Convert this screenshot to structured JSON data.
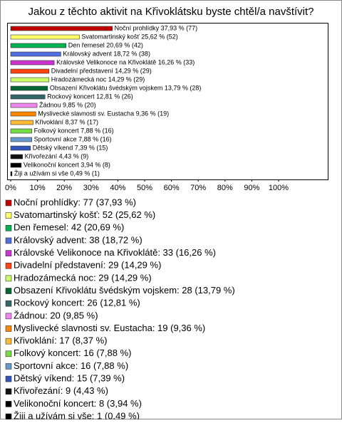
{
  "chart_data": {
    "type": "bar",
    "orientation": "horizontal",
    "title": "Jakou z těchto aktivit na Křivoklátsku byste chtěl/a navštívit?",
    "categories": [
      "Noční prohlídky",
      "Svatomartinský košť",
      "Den řemesel",
      "Královský advent",
      "Královské Velikonoce na Křivoklátě",
      "Divadelní představení",
      "Hradozámecká noc",
      "Obsazení Křivoklátu švédským vojskem",
      "Rockový koncert",
      "Žádnou",
      "Myslivecké slavnosti sv. Eustacha",
      "Křivoklání",
      "Folkový koncert",
      "Sportovní akce",
      "Dětský víkend",
      "Křivořezání",
      "Velikonoční koncert",
      "Žiji a užívám si vše"
    ],
    "values": [
      37.93,
      25.62,
      20.69,
      18.72,
      16.26,
      14.29,
      14.29,
      13.79,
      12.81,
      9.85,
      9.36,
      8.37,
      7.88,
      7.88,
      7.39,
      4.43,
      3.94,
      0.49
    ],
    "value_labels": [
      "Noční prohlídky 37,93 % (77)",
      "Svatomartinský košť 25,62 % (52)",
      "Den řemesel 20,69 % (42)",
      "Královský advent 18,72 % (38)",
      "Královské Velikonoce na Křivoklátě 16,26 % (33)",
      "Divadelní představení 14,29 % (29)",
      "Hradozámecká noc 14,29 % (29)",
      "Obsazení Křivoklátu švédským vojskem 13,79 % (28)",
      "Rockový koncert 12,81 % (26)",
      "Žádnou 9,85 % (20)",
      "Myslivecké slavnosti sv. Eustacha 9,36 % (19)",
      "Křivoklání 8,37 % (17)",
      "Folkový koncert 7,88 % (16)",
      "Sportovní akce 7,88 % (16)",
      "Dětský víkend 7,39 % (15)",
      "Křivořezání 4,43 % (9)",
      "Velikonoční koncert 3,94 % (8)",
      "Žiji a užívám si vše 0,49 % (1)"
    ],
    "legend_labels": [
      "Noční prohlídky: 77 (37,93 %)",
      "Svatomartinský košť: 52 (25,62 %)",
      "Den řemesel: 42 (20,69 %)",
      "Královský advent: 38 (18,72 %)",
      "Královské Velikonoce na Křivoklátě: 33 (16,26 %)",
      "Divadelní představení: 29 (14,29 %)",
      "Hradozámecká noc: 29 (14,29 %)",
      "Obsazení Křivoklátu švédským vojskem: 28 (13,79 %)",
      "Rockový koncert: 26 (12,81 %)",
      "Žádnou: 20 (9,85 %)",
      "Myslivecké slavnosti sv. Eustacha: 19 (9,36 %)",
      "Křivoklání: 17 (8,37 %)",
      "Folkový koncert: 16 (7,88 %)",
      "Sportovní akce: 16 (7,88 %)",
      "Dětský víkend: 15 (7,39 %)",
      "Křivořezání: 9 (4,43 %)",
      "Velikonoční koncert: 8 (3,94 %)",
      "Žiji a užívám si vše: 1 (0,49 %)"
    ],
    "colors": [
      "#c00000",
      "#ffff66",
      "#00b050",
      "#4f6fdf",
      "#cc33cc",
      "#ff4411",
      "#ccff66",
      "#006633",
      "#336666",
      "#ee88ee",
      "#ff8800",
      "#ffbb33",
      "#77dd44",
      "#6699cc",
      "#3355bb",
      "#111111",
      "#000000",
      "#000000"
    ],
    "xlim": [
      0,
      100
    ],
    "xticks": [
      {
        "value": 0,
        "label": "0%"
      },
      {
        "value": 10,
        "label": "10%"
      },
      {
        "value": 20,
        "label": "20%"
      },
      {
        "value": 30,
        "label": "30%"
      },
      {
        "value": 40,
        "label": "40%"
      },
      {
        "value": 50,
        "label": "50%"
      },
      {
        "value": 60,
        "label": "60%"
      },
      {
        "value": 70,
        "label": "70%"
      },
      {
        "value": 80,
        "label": "80%"
      },
      {
        "value": 90,
        "label": "90%"
      },
      {
        "value": 100,
        "label": "100%"
      }
    ]
  }
}
